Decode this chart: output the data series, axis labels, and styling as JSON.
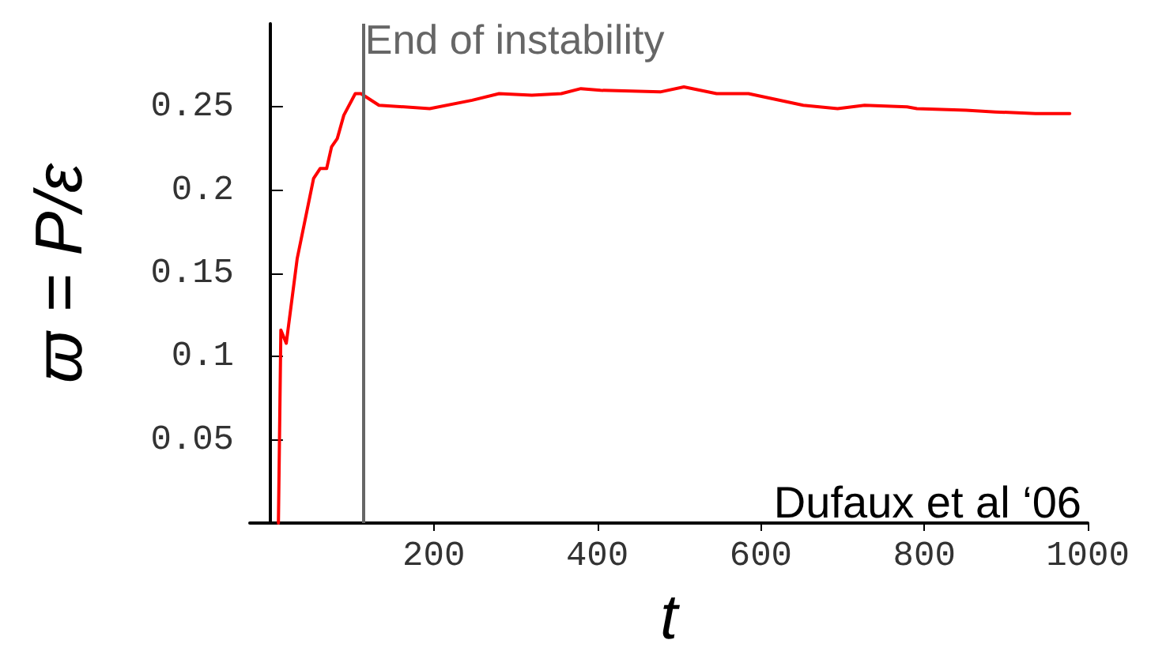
{
  "chart_data": {
    "type": "line",
    "xlabel": "t",
    "ylabel": "ϖ = P/ε",
    "x": [
      10,
      13,
      19.6,
      33,
      53,
      61,
      69,
      75,
      82,
      90,
      104,
      111,
      133,
      195,
      247,
      280,
      320,
      356,
      380,
      404,
      477,
      506,
      546,
      585,
      652,
      694,
      727,
      779,
      791,
      851,
      887,
      936,
      966,
      978
    ],
    "series": [
      {
        "color": "#ff0000",
        "values": [
          0,
          0.116,
          0.108,
          0.159,
          0.207,
          0.213,
          0.213,
          0.226,
          0.231,
          0.245,
          0.258,
          0.258,
          0.251,
          0.249,
          0.254,
          0.258,
          0.257,
          0.258,
          0.261,
          0.26,
          0.259,
          0.262,
          0.258,
          0.258,
          0.251,
          0.249,
          0.251,
          0.25,
          0.249,
          0.248,
          0.247,
          0.246,
          0.246,
          0.246
        ]
      }
    ],
    "xlim": [
      -25,
      1000
    ],
    "xticks": [
      200,
      400,
      600,
      800,
      1000
    ],
    "ylim": [
      0,
      0.3
    ],
    "yticks": [
      0.05,
      0.1,
      0.15,
      0.2,
      0.25
    ],
    "ref_lines": [
      {
        "axis": "x",
        "value": 114,
        "label": "End of instability",
        "color": "#666666"
      }
    ],
    "annotations": [
      "Dufaux et al ‘06"
    ],
    "grid": false,
    "marker": "none",
    "line_style": "solid"
  }
}
